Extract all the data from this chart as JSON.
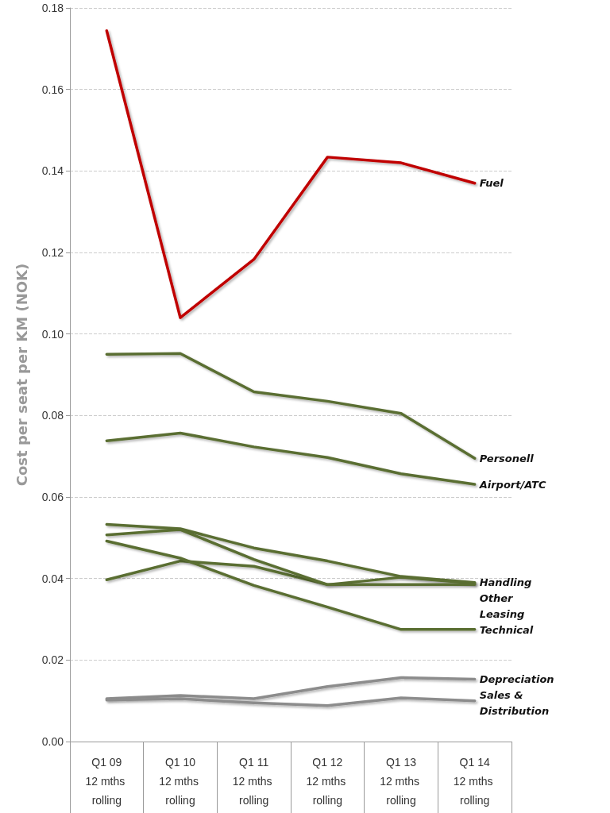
{
  "chart_data": {
    "type": "line",
    "ylabel": "Cost per seat per KM (NOK)",
    "categories": [
      "Q1 09\n12 mths rolling",
      "Q1 10\n12 mths rolling",
      "Q1 11\n12 mths rolling",
      "Q1 12\n12 mths rolling",
      "Q1 13\n12 mths rolling",
      "Q1 14\n12 mths rolling"
    ],
    "series": [
      {
        "name": "Fuel",
        "color": "#c00000",
        "values": [
          0.1744,
          0.104,
          0.1183,
          0.1434,
          0.142,
          0.137
        ]
      },
      {
        "name": "Personell",
        "color": "#5a6e32",
        "values": [
          0.095,
          0.0952,
          0.0858,
          0.0835,
          0.0805,
          0.0695
        ]
      },
      {
        "name": "Airport/ATC",
        "color": "#5a6e32",
        "values": [
          0.0738,
          0.0757,
          0.0723,
          0.0697,
          0.0657,
          0.0631
        ]
      },
      {
        "name": "Handling",
        "color": "#5a6e32",
        "values": [
          0.0533,
          0.0522,
          0.0475,
          0.0443,
          0.0405,
          0.039
        ]
      },
      {
        "name": "Other",
        "color": "#5a6e32",
        "values": [
          0.0397,
          0.0443,
          0.043,
          0.0385,
          0.0403,
          0.0388
        ]
      },
      {
        "name": "Leasing",
        "color": "#5a6e32",
        "values": [
          0.0507,
          0.052,
          0.0447,
          0.0385,
          0.0385,
          0.0385
        ]
      },
      {
        "name": "Technical",
        "color": "#5a6e32",
        "values": [
          0.0492,
          0.045,
          0.0383,
          0.033,
          0.0275,
          0.0275
        ]
      },
      {
        "name": "Depreciation",
        "color": "#8c8c8c",
        "values": [
          0.0105,
          0.0113,
          0.0105,
          0.0135,
          0.0157,
          0.0153
        ]
      },
      {
        "name": "Sales & Distribution",
        "color": "#8c8c8c",
        "values": [
          0.0102,
          0.0105,
          0.0095,
          0.0088,
          0.0107,
          0.01
        ]
      }
    ],
    "ylim": [
      0,
      0.18
    ],
    "yticks": [
      {
        "value": 0,
        "label": "0.00"
      },
      {
        "value": 0.02,
        "label": "0.02"
      },
      {
        "value": 0.04,
        "label": "0.04"
      },
      {
        "value": 0.06,
        "label": "0.06"
      },
      {
        "value": 0.08,
        "label": "0.08"
      },
      {
        "value": 0.1,
        "label": "0.10"
      },
      {
        "value": 0.12,
        "label": "0.12"
      },
      {
        "value": 0.14,
        "label": "0.14"
      },
      {
        "value": 0.16,
        "label": "0.16"
      },
      {
        "value": 0.18,
        "label": "0.18"
      }
    ],
    "grid": "y",
    "legend": false,
    "marker": "none",
    "line_style": "solid"
  }
}
